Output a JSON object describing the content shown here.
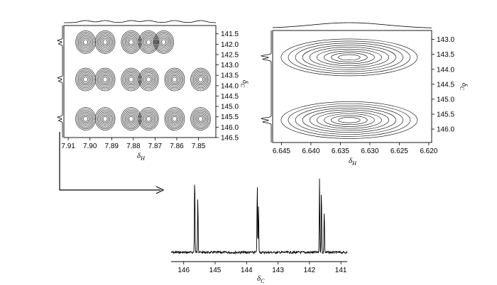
{
  "chart_data": [
    {
      "type": "contour",
      "panel": "left 2D spectrum",
      "xlabel": "δH",
      "xlabel_main": "δ",
      "xlabel_sub": "H",
      "ylabel": "δC",
      "ylabel_main": "δ",
      "ylabel_sub": "C",
      "xlim": [
        7.912,
        7.842
      ],
      "ylim": [
        141.1,
        146.5
      ],
      "x_ticks": [
        "7.91",
        "7.90",
        "7.89",
        "7.88",
        "7.87",
        "7.86",
        "7.85"
      ],
      "y_ticks": [
        "141.5",
        "142.0",
        "142.5",
        "143.0",
        "143.5",
        "144.0",
        "144.5",
        "145.0",
        "145.5",
        "146.0",
        "146.5"
      ],
      "peak_rows": [
        {
          "delta_c": 141.9,
          "delta_h_peaks": [
            7.902,
            7.893,
            7.881,
            7.873,
            7.866
          ]
        },
        {
          "delta_c": 143.7,
          "delta_h_peaks": [
            7.902,
            7.893,
            7.881,
            7.873,
            7.861,
            7.849
          ]
        },
        {
          "delta_c": 145.6,
          "delta_h_peaks": [
            7.902,
            7.893,
            7.881,
            7.873,
            7.861,
            7.849
          ]
        }
      ]
    },
    {
      "type": "contour",
      "panel": "right 2D spectrum",
      "xlabel": "δH",
      "xlabel_main": "δ",
      "xlabel_sub": "H",
      "ylabel": "δC",
      "ylabel_main": "δ",
      "ylabel_sub": "C",
      "xlim": [
        6.6465,
        6.6195
      ],
      "ylim": [
        142.7,
        146.45
      ],
      "x_ticks": [
        "6.645",
        "6.640",
        "6.635",
        "6.630",
        "6.625",
        "6.620"
      ],
      "y_ticks": [
        "143.0",
        "143.5",
        "144.0",
        "144.5",
        "145.0",
        "145.5",
        "146.0"
      ],
      "peaks": [
        {
          "delta_h": 6.6335,
          "delta_c": 143.6
        },
        {
          "delta_h": 6.6335,
          "delta_c": 145.7
        }
      ]
    },
    {
      "type": "line",
      "panel": "1D 13C spectrum",
      "xlabel": "δC",
      "xlabel_main": "δ",
      "xlabel_sub": "C",
      "xlim": [
        146.4,
        140.8
      ],
      "x_ticks": [
        "146",
        "145",
        "144",
        "143",
        "142",
        "141"
      ],
      "peaks": [
        {
          "delta_c": 145.65,
          "height": 1.0
        },
        {
          "delta_c": 145.55,
          "height": 0.73
        },
        {
          "delta_c": 143.66,
          "height": 0.88
        },
        {
          "delta_c": 143.62,
          "height": 0.6
        },
        {
          "delta_c": 141.68,
          "height": 0.94
        },
        {
          "delta_c": 141.62,
          "height": 0.81
        },
        {
          "delta_c": 141.53,
          "height": 0.55
        }
      ]
    }
  ]
}
